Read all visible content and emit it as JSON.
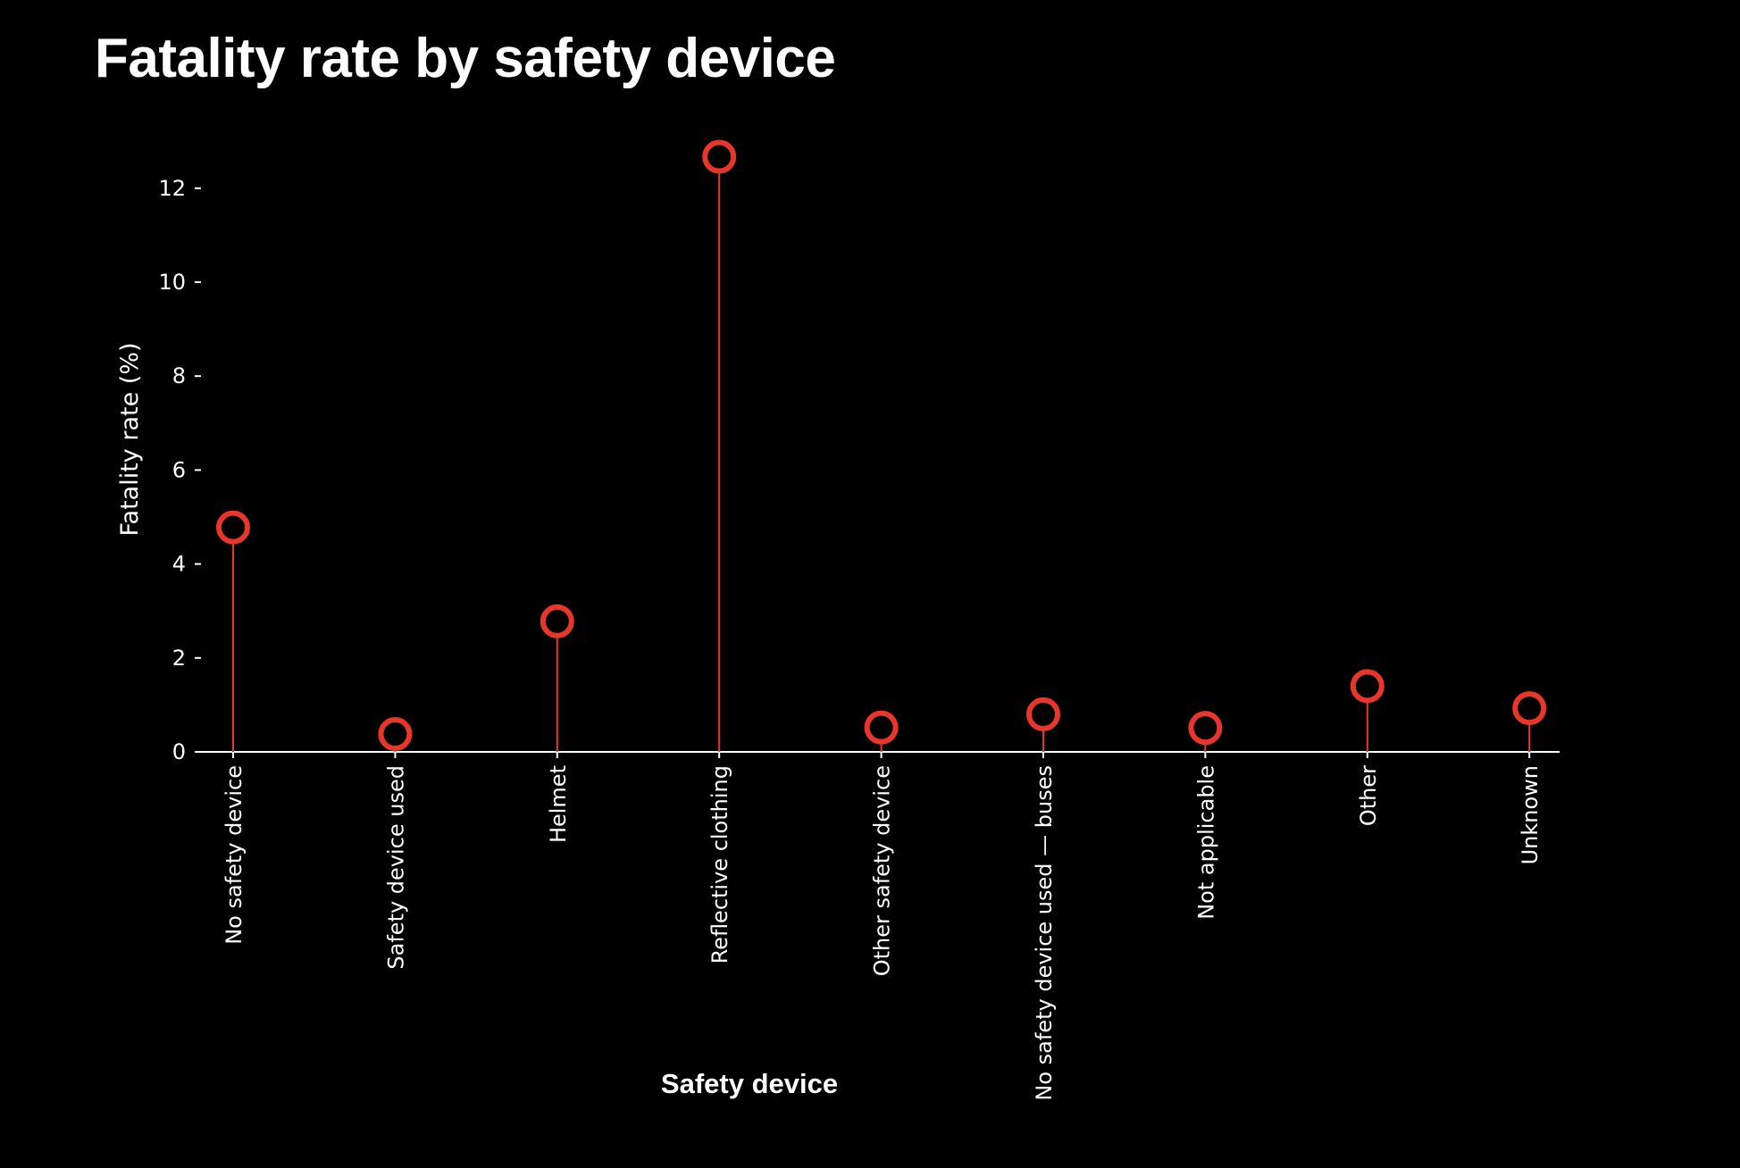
{
  "chart_data": {
    "type": "lollipop",
    "title": "Fatality rate by safety device",
    "xlabel": "Safety device",
    "ylabel": "Fatality rate (%)",
    "categories": [
      "No safety device",
      "Safety device used",
      "Helmet",
      "Reflective clothing",
      "Other safety device",
      "No safety device used — buses",
      "Not applicable",
      "Other",
      "Unknown"
    ],
    "values": [
      4.78,
      0.38,
      2.78,
      12.67,
      0.52,
      0.8,
      0.51,
      1.4,
      0.93
    ],
    "ylim": [
      0,
      12.7
    ],
    "yticks": [
      "0",
      "2",
      "4",
      "6",
      "8",
      "10",
      "12"
    ],
    "grid": false,
    "legend": "none",
    "colors": {
      "background": "#000000",
      "marker": "#e8362b",
      "stem": "#e8362b",
      "axis": "#ffffff",
      "text": "#ffffff"
    }
  }
}
